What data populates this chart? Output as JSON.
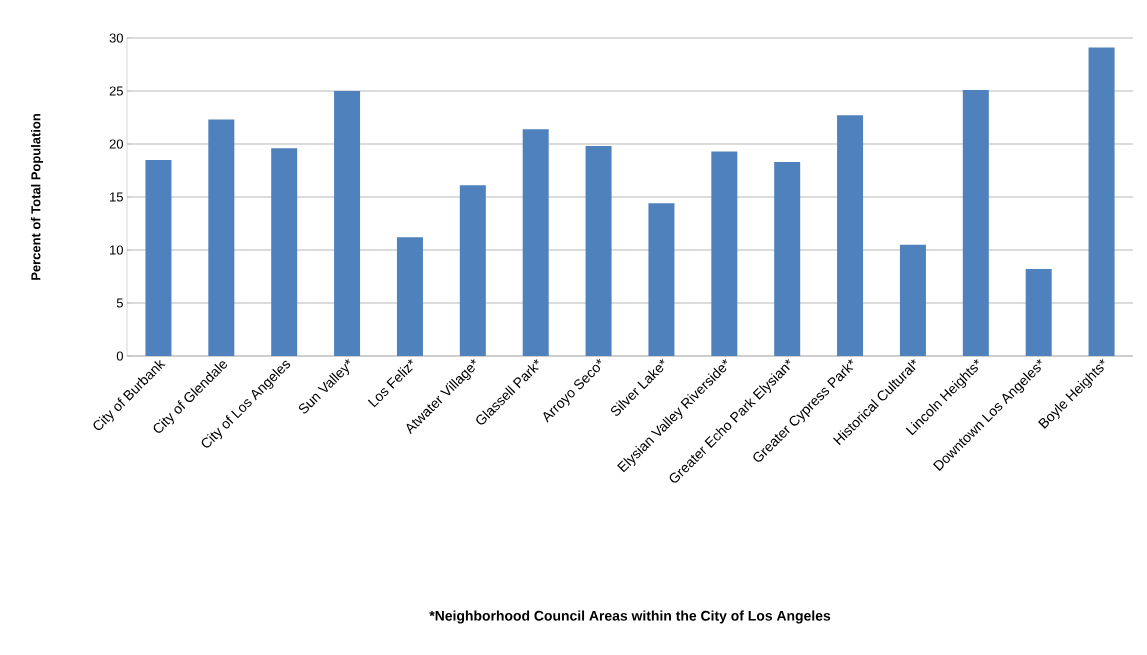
{
  "chart_data": {
    "type": "bar",
    "annotations": [
      "*Neighborhood Council Areas within the City of Los Angeles"
    ],
    "ylabel": "Percent of Total Population",
    "categories": [
      "City of Burbank",
      "City of Glendale",
      "City of Los Angeles",
      "Sun Valley*",
      "Los Feliz*",
      "Atwater Village*",
      "Glassell Park*",
      "Arroyo Seco*",
      "Silver Lake*",
      "Elysian Valley Riverside*",
      "Greater Echo Park Elysian*",
      "Greater Cypress Park*",
      "Historical Cultural*",
      "Lincoln Heights*",
      "Downtown Los Angeles*",
      "Boyle Heights*"
    ],
    "values": [
      18.5,
      22.3,
      19.6,
      25.0,
      11.2,
      16.1,
      21.4,
      19.8,
      14.4,
      19.3,
      18.3,
      22.7,
      10.5,
      25.1,
      8.2,
      29.1
    ],
    "color": "#4f81bd",
    "ylim": [
      0,
      30
    ],
    "yticks": [
      0,
      5,
      10,
      15,
      20,
      25,
      30
    ],
    "grid": "y"
  }
}
